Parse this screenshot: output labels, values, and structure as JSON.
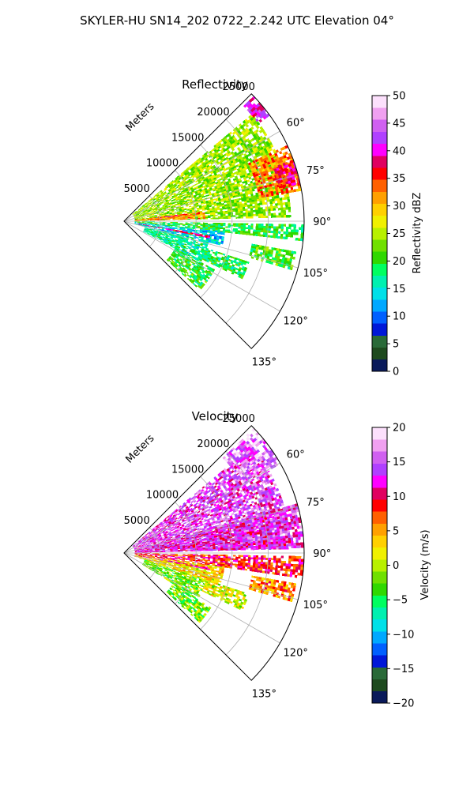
{
  "figure": {
    "suptitle": "SKYLER-HU  SN14_202  0722_2.242 UTC Elevation 04°"
  },
  "chart_data": [
    {
      "type": "heatmap",
      "projection": "polar-sector",
      "title": "Reflectivity",
      "range_label": "Meters",
      "range_ticks": [
        5000,
        10000,
        15000,
        20000,
        25000
      ],
      "range_tick_labels": [
        "5000",
        "10000",
        "15000",
        "20000",
        "25000"
      ],
      "range_max_m": 25000,
      "azimuth_range_deg": [
        45,
        135
      ],
      "azimuth_ticks": [
        60,
        75,
        90,
        105,
        120,
        135
      ],
      "azimuth_tick_labels": [
        "60°",
        "75°",
        "90°",
        "105°",
        "120°",
        "135°"
      ],
      "grid": true,
      "colorbar": {
        "label": "Reflectivity dBZ",
        "min": 0,
        "max": 50,
        "ticks": [
          0,
          5,
          10,
          15,
          20,
          25,
          30,
          35,
          40,
          45,
          50
        ],
        "tick_labels": [
          "0",
          "5",
          "10",
          "15",
          "20",
          "25",
          "30",
          "35",
          "40",
          "45",
          "50"
        ],
        "colors": [
          "#0a1a5a",
          "#1e4a1e",
          "#2a6a38",
          "#0018d8",
          "#0060ff",
          "#00a8ff",
          "#00e0e8",
          "#00f0b0",
          "#00ff60",
          "#30d800",
          "#70e000",
          "#b8f000",
          "#f0f000",
          "#ffd000",
          "#ffa000",
          "#ff6000",
          "#ff0000",
          "#e00060",
          "#ff00ff",
          "#b040ff",
          "#d060f0",
          "#f0a0f0",
          "#fce0fc"
        ]
      },
      "regions": [
        {
          "r": [
            1500,
            23000
          ],
          "az": [
            50,
            88
          ],
          "value": 24
        },
        {
          "r": [
            1500,
            11000
          ],
          "az": [
            83,
            88
          ],
          "value": 32
        },
        {
          "r": [
            4000,
            9000
          ],
          "az": [
            83.5,
            84.3
          ],
          "value": 38
        },
        {
          "r": [
            19000,
            25000
          ],
          "az": [
            65,
            80
          ],
          "value": 33
        },
        {
          "r": [
            22000,
            25000
          ],
          "az": [
            70,
            78
          ],
          "value": 37
        },
        {
          "r": [
            23000,
            25000
          ],
          "az": [
            46,
            54
          ],
          "value": 40
        },
        {
          "r": [
            1500,
            25000
          ],
          "az": [
            91,
            96
          ],
          "value": 20
        },
        {
          "r": [
            1500,
            14000
          ],
          "az": [
            96,
            104
          ],
          "value": 14
        },
        {
          "r": [
            2000,
            12000
          ],
          "az": [
            99.5,
            100.5
          ],
          "value": 38
        },
        {
          "r": [
            3000,
            12000
          ],
          "az": [
            104,
            118
          ],
          "value": 17
        },
        {
          "r": [
            8000,
            14000
          ],
          "az": [
            118,
            132
          ],
          "value": 20
        },
        {
          "r": [
            18000,
            24000
          ],
          "az": [
            100,
            106
          ],
          "value": 21
        },
        {
          "r": [
            12000,
            18000
          ],
          "az": [
            108,
            116
          ],
          "value": 19
        }
      ]
    },
    {
      "type": "heatmap",
      "projection": "polar-sector",
      "title": "Velocity",
      "range_label": "Meters",
      "range_ticks": [
        5000,
        10000,
        15000,
        20000,
        25000
      ],
      "range_tick_labels": [
        "5000",
        "10000",
        "15000",
        "20000",
        "25000"
      ],
      "range_max_m": 25000,
      "azimuth_range_deg": [
        45,
        135
      ],
      "azimuth_ticks": [
        60,
        75,
        90,
        105,
        120,
        135
      ],
      "azimuth_tick_labels": [
        "60°",
        "75°",
        "90°",
        "105°",
        "120°",
        "135°"
      ],
      "grid": true,
      "colorbar": {
        "label": "Velocity (m/s)",
        "min": -20,
        "max": 20,
        "ticks": [
          -20,
          -15,
          -10,
          -5,
          0,
          5,
          10,
          15,
          20
        ],
        "tick_labels": [
          "−20",
          "−15",
          "−10",
          "−5",
          "0",
          "5",
          "10",
          "15",
          "20"
        ],
        "colors": [
          "#0a1a5a",
          "#1e4a1e",
          "#2a6a38",
          "#0018d8",
          "#0060ff",
          "#00a8ff",
          "#00e0e8",
          "#00f0b0",
          "#00ff60",
          "#30d800",
          "#70e000",
          "#b8f000",
          "#f0f000",
          "#ffd000",
          "#ffa000",
          "#ff6000",
          "#ff0000",
          "#e00060",
          "#ff00ff",
          "#b040ff",
          "#d060f0",
          "#f0a0f0",
          "#fce0fc"
        ]
      },
      "regions": [
        {
          "r": [
            1500,
            23000
          ],
          "az": [
            50,
            88
          ],
          "value": 14
        },
        {
          "r": [
            1500,
            25000
          ],
          "az": [
            74,
            88
          ],
          "value": 13
        },
        {
          "r": [
            19000,
            25000
          ],
          "az": [
            46,
            60
          ],
          "value": 16
        },
        {
          "r": [
            1500,
            25000
          ],
          "az": [
            91,
            98
          ],
          "value": 9
        },
        {
          "r": [
            1500,
            14000
          ],
          "az": [
            98,
            108
          ],
          "value": 3
        },
        {
          "r": [
            2000,
            12000
          ],
          "az": [
            99.5,
            100.5
          ],
          "value": 10
        },
        {
          "r": [
            3000,
            12000
          ],
          "az": [
            108,
            122
          ],
          "value": -2
        },
        {
          "r": [
            8000,
            14000
          ],
          "az": [
            122,
            132
          ],
          "value": -2
        },
        {
          "r": [
            18000,
            24000
          ],
          "az": [
            100,
            106
          ],
          "value": 6
        },
        {
          "r": [
            12000,
            18000
          ],
          "az": [
            108,
            116
          ],
          "value": 1
        }
      ]
    }
  ]
}
